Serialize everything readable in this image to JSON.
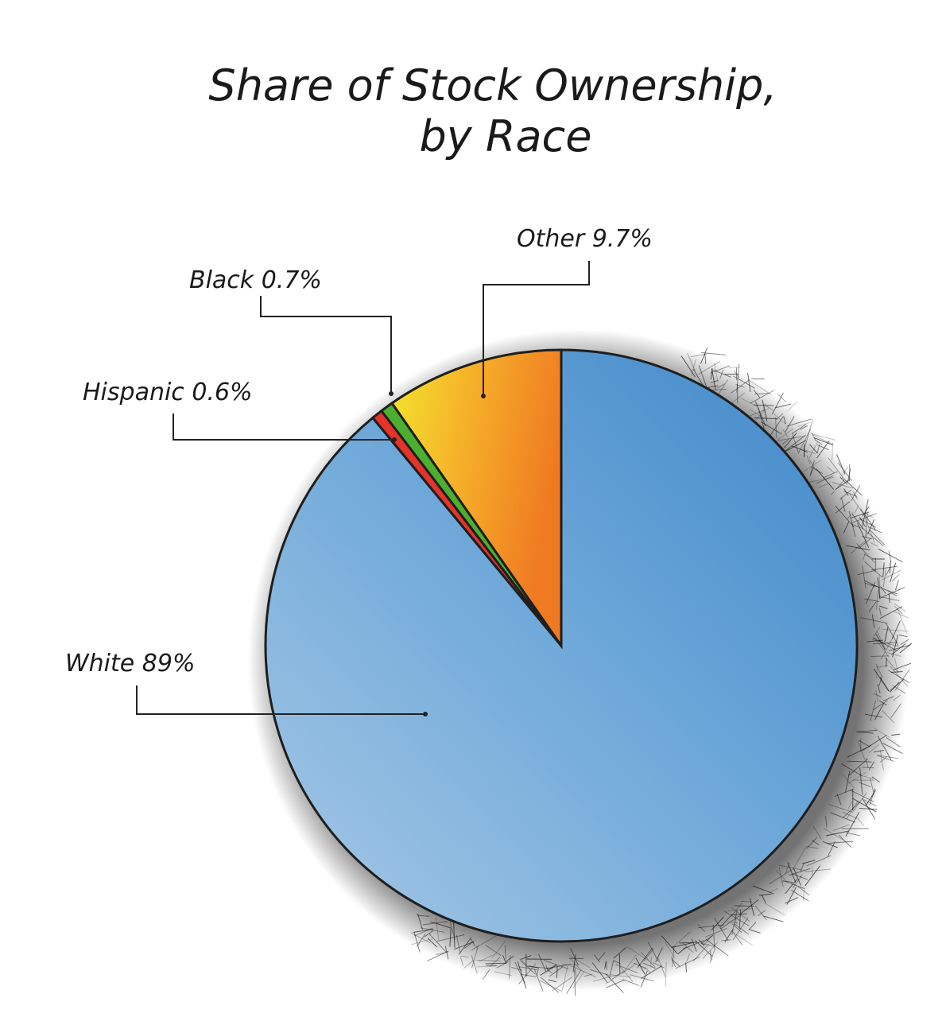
{
  "chart_data": {
    "type": "pie",
    "title": [
      "Share of Stock Ownership,",
      "by Race"
    ],
    "start_angle_deg": 0,
    "direction": "clockwise",
    "slices": [
      {
        "name": "White",
        "value": 89,
        "label": "White 89%",
        "color": "#4a90cc",
        "color_light": "#9cc3e4",
        "gradient": "blue"
      },
      {
        "name": "Hispanic",
        "value": 0.6,
        "label": "Hispanic 0.6%",
        "color": "#e5332a",
        "color_light": "#e5332a"
      },
      {
        "name": "Black",
        "value": 0.7,
        "label": "Black 0.7%",
        "color": "#4caf2f",
        "color_light": "#4caf2f"
      },
      {
        "name": "Other",
        "value": 9.7,
        "label": "Other 9.7%",
        "color": "#f28a24",
        "color_light": "#f2e632",
        "gradient": "yellow-orange"
      }
    ],
    "legend": "none"
  }
}
